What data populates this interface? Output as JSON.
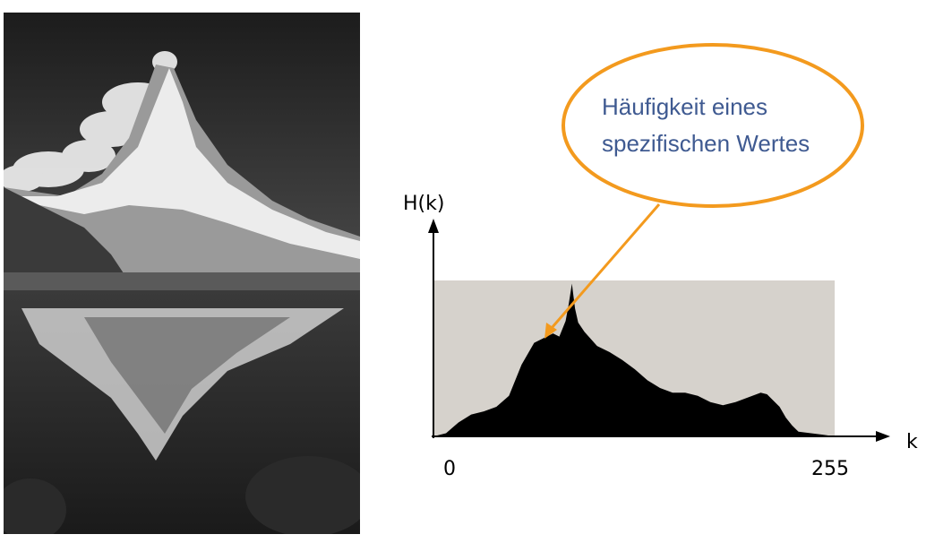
{
  "photo": {
    "subject": "Matterhorn mountain reflected in a lake",
    "style": "grayscale"
  },
  "callout": {
    "line1": "Häufigkeit eines",
    "line2": "spezifischen Wertes",
    "border_color": "#f39a1e",
    "text_color": "#3f5a91"
  },
  "chart_data": {
    "type": "area",
    "ylabel": "H(k)",
    "xlabel": "k",
    "xlim": [
      0,
      255
    ],
    "x_ticks": [
      "0",
      "255"
    ],
    "grid": false,
    "plot_bg_color": "#d6d2cc",
    "fill_color": "#000000",
    "x": [
      0,
      8,
      16,
      24,
      32,
      40,
      48,
      56,
      64,
      72,
      76,
      80,
      84,
      86,
      88,
      90,
      92,
      96,
      104,
      112,
      120,
      128,
      136,
      144,
      152,
      160,
      168,
      176,
      184,
      192,
      200,
      208,
      212,
      216,
      220,
      224,
      228,
      232,
      240,
      248,
      255
    ],
    "values": [
      0.0,
      0.02,
      0.09,
      0.14,
      0.16,
      0.19,
      0.26,
      0.46,
      0.6,
      0.64,
      0.66,
      0.64,
      0.74,
      0.85,
      0.98,
      0.82,
      0.73,
      0.67,
      0.58,
      0.54,
      0.49,
      0.43,
      0.36,
      0.31,
      0.28,
      0.28,
      0.26,
      0.22,
      0.2,
      0.22,
      0.25,
      0.28,
      0.27,
      0.23,
      0.19,
      0.12,
      0.07,
      0.03,
      0.02,
      0.01,
      0.0
    ]
  }
}
